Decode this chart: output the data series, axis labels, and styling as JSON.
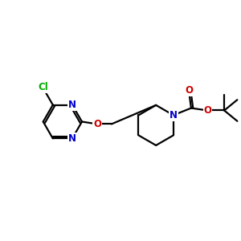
{
  "background": "#ffffff",
  "atom_colors": {
    "C": "#000000",
    "N": "#0000cc",
    "O": "#cc0000",
    "Cl": "#00aa00"
  },
  "bond_color": "#000000",
  "bond_width": 1.6,
  "font_size_atom": 8.5,
  "figsize": [
    3.0,
    3.0
  ],
  "dpi": 100,
  "xlim": [
    0,
    10
  ],
  "ylim": [
    2,
    9
  ]
}
